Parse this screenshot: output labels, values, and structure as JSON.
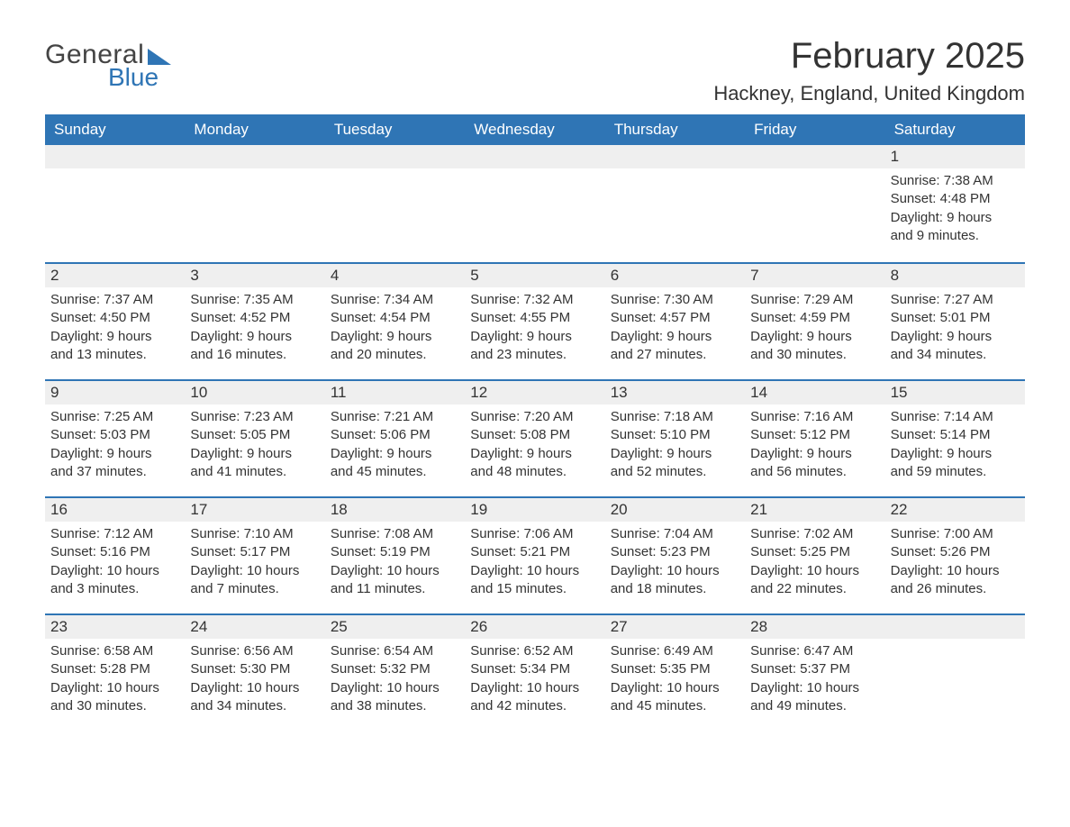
{
  "logo": {
    "text1": "General",
    "text2": "Blue"
  },
  "title": "February 2025",
  "location": "Hackney, England, United Kingdom",
  "colors": {
    "primary": "#2f75b5",
    "row_bg": "#efefef",
    "text": "#333333",
    "bg": "#ffffff"
  },
  "typography": {
    "title_fontsize": 40,
    "location_fontsize": 22,
    "weekday_fontsize": 17,
    "daynum_fontsize": 17,
    "body_fontsize": 15
  },
  "layout": {
    "columns": 7,
    "rows": 5
  },
  "weekdays": [
    "Sunday",
    "Monday",
    "Tuesday",
    "Wednesday",
    "Thursday",
    "Friday",
    "Saturday"
  ],
  "labels": {
    "sunrise": "Sunrise:",
    "sunset": "Sunset:",
    "daylight": "Daylight:"
  },
  "weeks": [
    [
      {
        "day": "",
        "sunrise": "",
        "sunset": "",
        "daylight1": "",
        "daylight2": ""
      },
      {
        "day": "",
        "sunrise": "",
        "sunset": "",
        "daylight1": "",
        "daylight2": ""
      },
      {
        "day": "",
        "sunrise": "",
        "sunset": "",
        "daylight1": "",
        "daylight2": ""
      },
      {
        "day": "",
        "sunrise": "",
        "sunset": "",
        "daylight1": "",
        "daylight2": ""
      },
      {
        "day": "",
        "sunrise": "",
        "sunset": "",
        "daylight1": "",
        "daylight2": ""
      },
      {
        "day": "",
        "sunrise": "",
        "sunset": "",
        "daylight1": "",
        "daylight2": ""
      },
      {
        "day": "1",
        "sunrise": "Sunrise: 7:38 AM",
        "sunset": "Sunset: 4:48 PM",
        "daylight1": "Daylight: 9 hours",
        "daylight2": "and 9 minutes."
      }
    ],
    [
      {
        "day": "2",
        "sunrise": "Sunrise: 7:37 AM",
        "sunset": "Sunset: 4:50 PM",
        "daylight1": "Daylight: 9 hours",
        "daylight2": "and 13 minutes."
      },
      {
        "day": "3",
        "sunrise": "Sunrise: 7:35 AM",
        "sunset": "Sunset: 4:52 PM",
        "daylight1": "Daylight: 9 hours",
        "daylight2": "and 16 minutes."
      },
      {
        "day": "4",
        "sunrise": "Sunrise: 7:34 AM",
        "sunset": "Sunset: 4:54 PM",
        "daylight1": "Daylight: 9 hours",
        "daylight2": "and 20 minutes."
      },
      {
        "day": "5",
        "sunrise": "Sunrise: 7:32 AM",
        "sunset": "Sunset: 4:55 PM",
        "daylight1": "Daylight: 9 hours",
        "daylight2": "and 23 minutes."
      },
      {
        "day": "6",
        "sunrise": "Sunrise: 7:30 AM",
        "sunset": "Sunset: 4:57 PM",
        "daylight1": "Daylight: 9 hours",
        "daylight2": "and 27 minutes."
      },
      {
        "day": "7",
        "sunrise": "Sunrise: 7:29 AM",
        "sunset": "Sunset: 4:59 PM",
        "daylight1": "Daylight: 9 hours",
        "daylight2": "and 30 minutes."
      },
      {
        "day": "8",
        "sunrise": "Sunrise: 7:27 AM",
        "sunset": "Sunset: 5:01 PM",
        "daylight1": "Daylight: 9 hours",
        "daylight2": "and 34 minutes."
      }
    ],
    [
      {
        "day": "9",
        "sunrise": "Sunrise: 7:25 AM",
        "sunset": "Sunset: 5:03 PM",
        "daylight1": "Daylight: 9 hours",
        "daylight2": "and 37 minutes."
      },
      {
        "day": "10",
        "sunrise": "Sunrise: 7:23 AM",
        "sunset": "Sunset: 5:05 PM",
        "daylight1": "Daylight: 9 hours",
        "daylight2": "and 41 minutes."
      },
      {
        "day": "11",
        "sunrise": "Sunrise: 7:21 AM",
        "sunset": "Sunset: 5:06 PM",
        "daylight1": "Daylight: 9 hours",
        "daylight2": "and 45 minutes."
      },
      {
        "day": "12",
        "sunrise": "Sunrise: 7:20 AM",
        "sunset": "Sunset: 5:08 PM",
        "daylight1": "Daylight: 9 hours",
        "daylight2": "and 48 minutes."
      },
      {
        "day": "13",
        "sunrise": "Sunrise: 7:18 AM",
        "sunset": "Sunset: 5:10 PM",
        "daylight1": "Daylight: 9 hours",
        "daylight2": "and 52 minutes."
      },
      {
        "day": "14",
        "sunrise": "Sunrise: 7:16 AM",
        "sunset": "Sunset: 5:12 PM",
        "daylight1": "Daylight: 9 hours",
        "daylight2": "and 56 minutes."
      },
      {
        "day": "15",
        "sunrise": "Sunrise: 7:14 AM",
        "sunset": "Sunset: 5:14 PM",
        "daylight1": "Daylight: 9 hours",
        "daylight2": "and 59 minutes."
      }
    ],
    [
      {
        "day": "16",
        "sunrise": "Sunrise: 7:12 AM",
        "sunset": "Sunset: 5:16 PM",
        "daylight1": "Daylight: 10 hours",
        "daylight2": "and 3 minutes."
      },
      {
        "day": "17",
        "sunrise": "Sunrise: 7:10 AM",
        "sunset": "Sunset: 5:17 PM",
        "daylight1": "Daylight: 10 hours",
        "daylight2": "and 7 minutes."
      },
      {
        "day": "18",
        "sunrise": "Sunrise: 7:08 AM",
        "sunset": "Sunset: 5:19 PM",
        "daylight1": "Daylight: 10 hours",
        "daylight2": "and 11 minutes."
      },
      {
        "day": "19",
        "sunrise": "Sunrise: 7:06 AM",
        "sunset": "Sunset: 5:21 PM",
        "daylight1": "Daylight: 10 hours",
        "daylight2": "and 15 minutes."
      },
      {
        "day": "20",
        "sunrise": "Sunrise: 7:04 AM",
        "sunset": "Sunset: 5:23 PM",
        "daylight1": "Daylight: 10 hours",
        "daylight2": "and 18 minutes."
      },
      {
        "day": "21",
        "sunrise": "Sunrise: 7:02 AM",
        "sunset": "Sunset: 5:25 PM",
        "daylight1": "Daylight: 10 hours",
        "daylight2": "and 22 minutes."
      },
      {
        "day": "22",
        "sunrise": "Sunrise: 7:00 AM",
        "sunset": "Sunset: 5:26 PM",
        "daylight1": "Daylight: 10 hours",
        "daylight2": "and 26 minutes."
      }
    ],
    [
      {
        "day": "23",
        "sunrise": "Sunrise: 6:58 AM",
        "sunset": "Sunset: 5:28 PM",
        "daylight1": "Daylight: 10 hours",
        "daylight2": "and 30 minutes."
      },
      {
        "day": "24",
        "sunrise": "Sunrise: 6:56 AM",
        "sunset": "Sunset: 5:30 PM",
        "daylight1": "Daylight: 10 hours",
        "daylight2": "and 34 minutes."
      },
      {
        "day": "25",
        "sunrise": "Sunrise: 6:54 AM",
        "sunset": "Sunset: 5:32 PM",
        "daylight1": "Daylight: 10 hours",
        "daylight2": "and 38 minutes."
      },
      {
        "day": "26",
        "sunrise": "Sunrise: 6:52 AM",
        "sunset": "Sunset: 5:34 PM",
        "daylight1": "Daylight: 10 hours",
        "daylight2": "and 42 minutes."
      },
      {
        "day": "27",
        "sunrise": "Sunrise: 6:49 AM",
        "sunset": "Sunset: 5:35 PM",
        "daylight1": "Daylight: 10 hours",
        "daylight2": "and 45 minutes."
      },
      {
        "day": "28",
        "sunrise": "Sunrise: 6:47 AM",
        "sunset": "Sunset: 5:37 PM",
        "daylight1": "Daylight: 10 hours",
        "daylight2": "and 49 minutes."
      },
      {
        "day": "",
        "sunrise": "",
        "sunset": "",
        "daylight1": "",
        "daylight2": ""
      }
    ]
  ]
}
